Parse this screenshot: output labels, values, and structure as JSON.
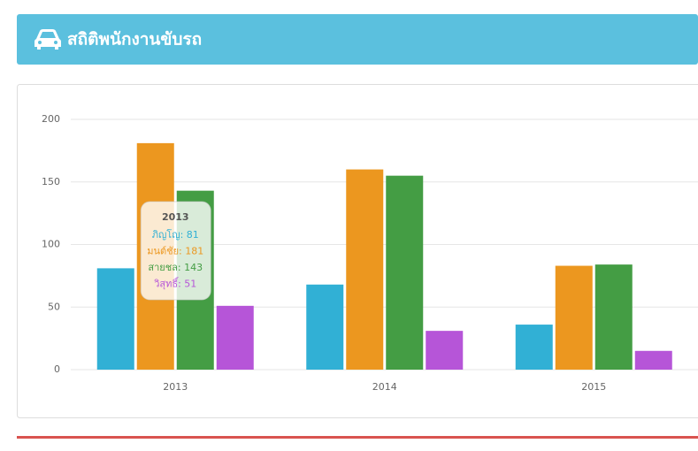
{
  "header": {
    "title": "สถิติพนักงานขับรถ"
  },
  "chart_data": {
    "type": "bar",
    "categories": [
      "2013",
      "2014",
      "2015"
    ],
    "series": [
      {
        "name": "ภิญโญ",
        "color": "#31b0d5",
        "values": [
          81,
          68,
          36
        ]
      },
      {
        "name": "มนต์ชัย",
        "color": "#ec971f",
        "values": [
          181,
          160,
          83
        ]
      },
      {
        "name": "สายชล",
        "color": "#449d44",
        "values": [
          143,
          155,
          84
        ]
      },
      {
        "name": "วิสุทธิ์",
        "color": "#b655d8",
        "values": [
          51,
          31,
          15
        ]
      }
    ],
    "ylim": [
      0,
      200
    ],
    "yticks": [
      0,
      50,
      100,
      150,
      200
    ],
    "grid": true,
    "tooltip": {
      "title": "2013",
      "items": [
        "ภิญโญ: 81",
        "มนต์ชัย: 181",
        "สายชล: 143",
        "วิสุทธิ์: 51"
      ]
    }
  }
}
